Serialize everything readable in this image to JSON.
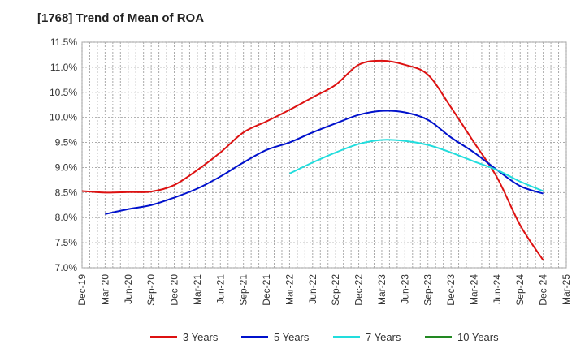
{
  "chart_data": {
    "type": "line",
    "title": "[1768]  Trend of Mean of ROA",
    "xlabel": "",
    "ylabel": "",
    "ylim": [
      7.0,
      11.5
    ],
    "y_ticks": [
      "7.0%",
      "7.5%",
      "8.0%",
      "8.5%",
      "9.0%",
      "9.5%",
      "10.0%",
      "10.5%",
      "11.0%",
      "11.5%"
    ],
    "categories": [
      "Dec-19",
      "Mar-20",
      "Jun-20",
      "Sep-20",
      "Dec-20",
      "Mar-21",
      "Jun-21",
      "Sep-21",
      "Dec-21",
      "Mar-22",
      "Jun-22",
      "Sep-22",
      "Dec-22",
      "Mar-23",
      "Jun-23",
      "Sep-23",
      "Dec-23",
      "Mar-24",
      "Jun-24",
      "Sep-24",
      "Dec-24",
      "Mar-25"
    ],
    "series": [
      {
        "name": "3 Years",
        "color": "#dd1111",
        "values": [
          8.53,
          8.5,
          8.51,
          8.52,
          8.65,
          8.95,
          9.3,
          9.7,
          9.92,
          10.15,
          10.4,
          10.65,
          11.05,
          11.13,
          11.05,
          10.85,
          10.2,
          9.5,
          8.8,
          7.85,
          7.15,
          null
        ]
      },
      {
        "name": "5 Years",
        "color": "#0011cc",
        "values": [
          null,
          8.07,
          8.17,
          8.25,
          8.4,
          8.58,
          8.82,
          9.1,
          9.35,
          9.5,
          9.7,
          9.88,
          10.05,
          10.13,
          10.1,
          9.95,
          9.6,
          9.3,
          8.95,
          8.63,
          8.48,
          null
        ]
      },
      {
        "name": "7 Years",
        "color": "#22dddd",
        "values": [
          null,
          null,
          null,
          null,
          null,
          null,
          null,
          null,
          null,
          8.88,
          9.1,
          9.3,
          9.47,
          9.55,
          9.53,
          9.45,
          9.3,
          9.12,
          8.95,
          8.72,
          8.53,
          null
        ]
      },
      {
        "name": "10 Years",
        "color": "#228822",
        "values": [
          null,
          null,
          null,
          null,
          null,
          null,
          null,
          null,
          null,
          null,
          null,
          null,
          null,
          null,
          null,
          null,
          null,
          null,
          null,
          null,
          null,
          null
        ]
      }
    ],
    "grid": true,
    "legend_position": "bottom"
  }
}
